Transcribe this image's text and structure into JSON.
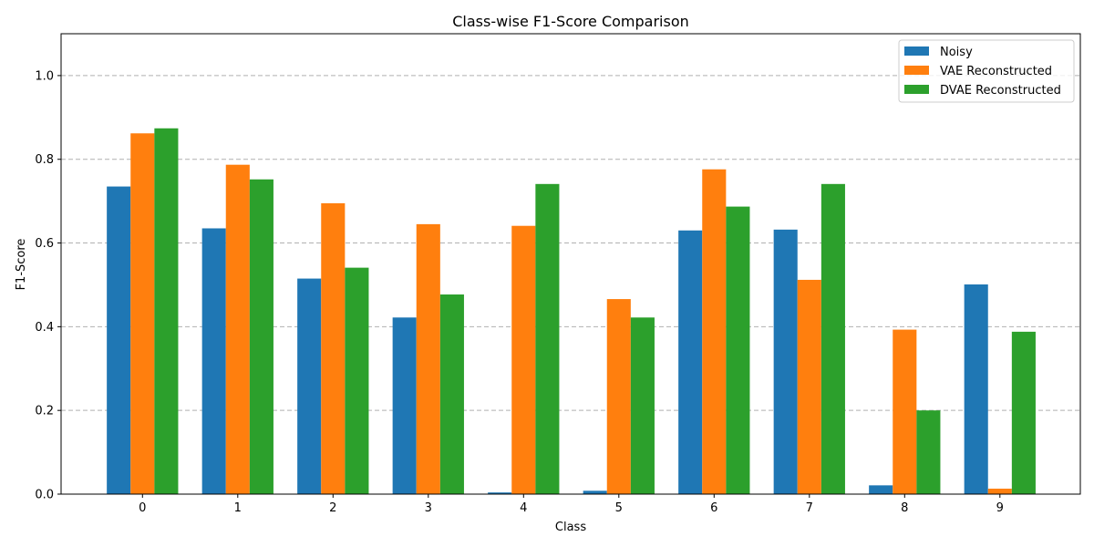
{
  "chart_data": {
    "type": "bar",
    "title": "Class-wise F1-Score Comparison",
    "xlabel": "Class",
    "ylabel": "F1-Score",
    "categories": [
      "0",
      "1",
      "2",
      "3",
      "4",
      "5",
      "6",
      "7",
      "8",
      "9"
    ],
    "series": [
      {
        "name": "Noisy",
        "color": "#1f77b4",
        "values": [
          0.735,
          0.635,
          0.515,
          0.422,
          0.004,
          0.008,
          0.63,
          0.632,
          0.021,
          0.501
        ]
      },
      {
        "name": "VAE Reconstructed",
        "color": "#ff7f0e",
        "values": [
          0.862,
          0.787,
          0.695,
          0.645,
          0.641,
          0.466,
          0.776,
          0.512,
          0.393,
          0.013
        ]
      },
      {
        "name": "DVAE Reconstructed",
        "color": "#2ca02c",
        "values": [
          0.874,
          0.752,
          0.541,
          0.477,
          0.741,
          0.422,
          0.687,
          0.741,
          0.2,
          0.388
        ]
      }
    ],
    "ylim": [
      0,
      1.1
    ],
    "yticks": [
      "0.0",
      "0.2",
      "0.4",
      "0.6",
      "0.8",
      "1.0"
    ],
    "grid": "y-dashed",
    "legend_position": "top-right"
  }
}
